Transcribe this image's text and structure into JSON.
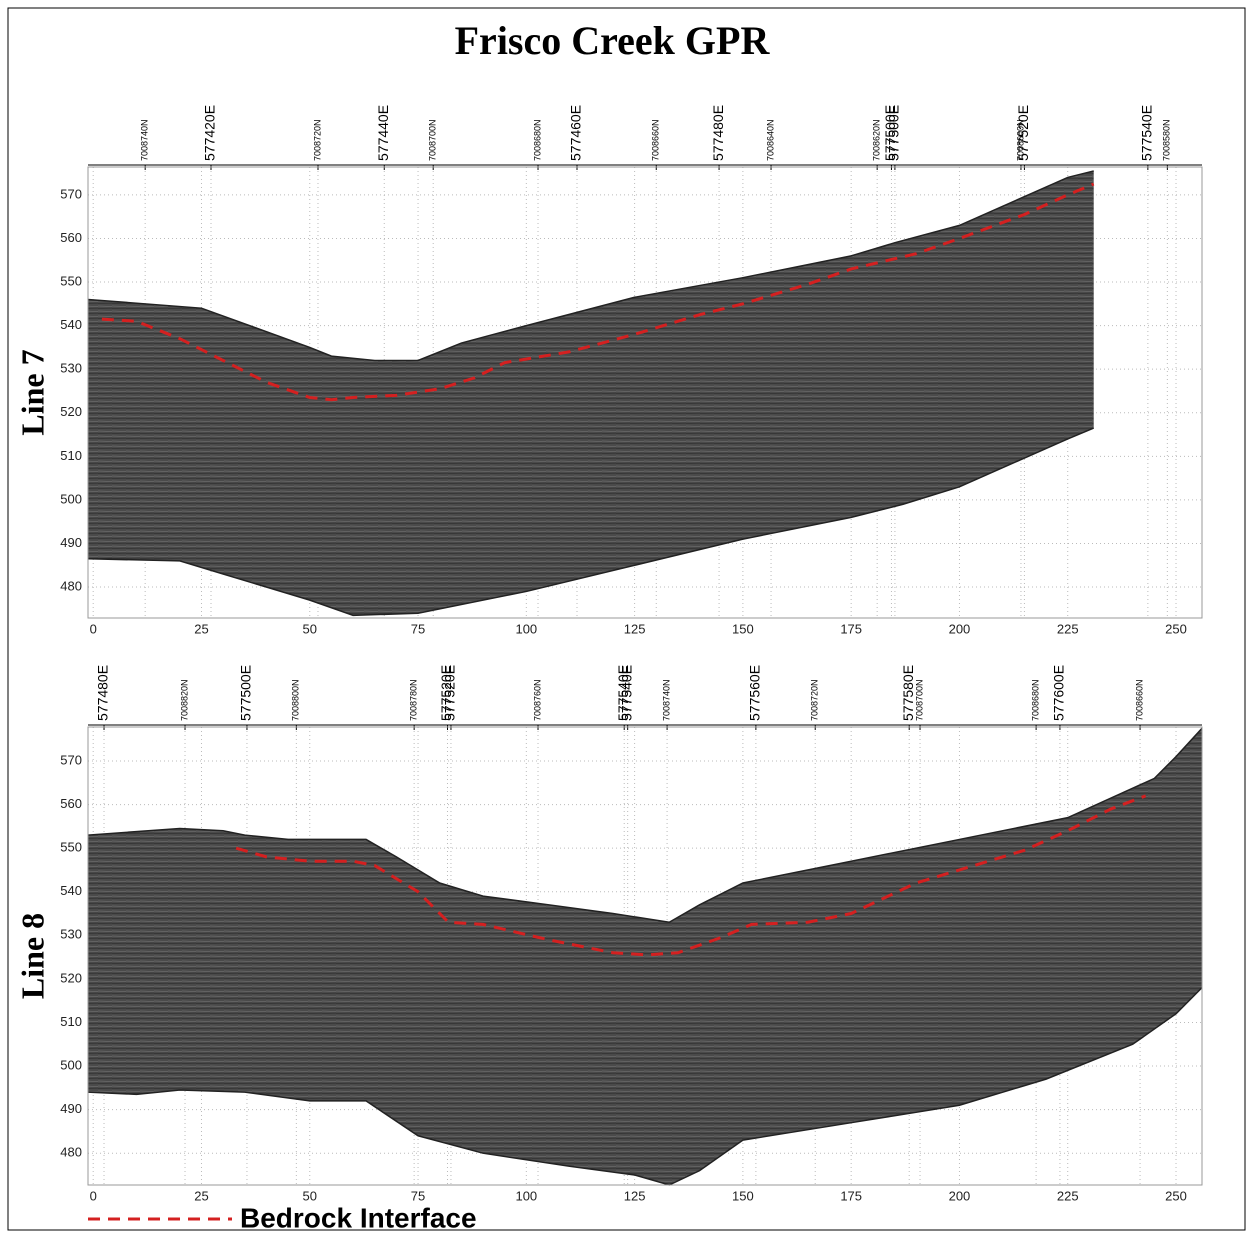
{
  "title": "Frisco Creek GPR",
  "legend": {
    "label": "Bedrock Interface",
    "color": "#d42020"
  },
  "chart_data": [
    {
      "type": "line",
      "ylabel": "Line 7",
      "xlim": [
        -1.2,
        256
      ],
      "ylim": [
        472.9,
        576.4
      ],
      "xticks": [
        0,
        25,
        50,
        75,
        100,
        125,
        150,
        175,
        200,
        225,
        250
      ],
      "yticks": [
        480,
        490,
        500,
        510,
        520,
        530,
        540,
        550,
        560,
        570
      ],
      "grid": true,
      "top_ticks": [
        {
          "value": 12.0,
          "label": "7008740N"
        },
        {
          "value": 27.2,
          "label": "577420E"
        },
        {
          "value": 51.9,
          "label": "7008720N"
        },
        {
          "value": 67.2,
          "label": "577440E"
        },
        {
          "value": 78.5,
          "label": "7008700N"
        },
        {
          "value": 102.7,
          "label": "7008680N"
        },
        {
          "value": 111.7,
          "label": "577460E"
        },
        {
          "value": 130,
          "label": "7008660N"
        },
        {
          "value": 144.5,
          "label": "577480E"
        },
        {
          "value": 156.5,
          "label": "7008640N"
        },
        {
          "value": 181,
          "label": "7008620N"
        },
        {
          "value": 184.3,
          "label": "577500E"
        },
        {
          "value": 185.1,
          "label": "577500E"
        },
        {
          "value": 214.2,
          "label": "7008600N"
        },
        {
          "value": 215,
          "label": "577520E"
        },
        {
          "value": 243.5,
          "label": "577540E"
        },
        {
          "value": 248,
          "label": "7008580N"
        }
      ],
      "surface": {
        "x": [
          -1.2,
          25,
          50,
          55,
          65,
          75,
          85,
          100,
          125,
          150,
          175,
          185,
          200,
          225,
          231
        ],
        "values": [
          546,
          544,
          535,
          533,
          532,
          532,
          536,
          540,
          546.5,
          551,
          556,
          559,
          563,
          574,
          575.5
        ]
      },
      "base": {
        "x": [
          -1.2,
          20,
          30,
          50,
          60,
          75,
          100,
          125,
          150,
          175,
          187,
          200,
          225,
          231
        ],
        "values": [
          486.5,
          486,
          483,
          477,
          473.5,
          474,
          479,
          485,
          491,
          496,
          499,
          503,
          514,
          516.5
        ]
      },
      "bedrock": {
        "x": [
          2,
          10,
          20,
          30,
          40,
          50,
          55,
          60,
          70,
          80,
          88,
          95,
          110,
          125,
          140,
          150,
          165,
          175,
          190,
          200,
          215,
          225,
          231
        ],
        "values": [
          541.5,
          541,
          537,
          532,
          527,
          523.5,
          523,
          523.5,
          524,
          525.5,
          528,
          531.5,
          534,
          538,
          542.5,
          545,
          549.5,
          553,
          556.5,
          560,
          565.5,
          570,
          572.5
        ]
      }
    },
    {
      "type": "line",
      "ylabel": "Line 8",
      "xlim": [
        -1.2,
        256
      ],
      "ylim": [
        472.7,
        577.8
      ],
      "xticks": [
        0,
        25,
        50,
        75,
        100,
        125,
        150,
        175,
        200,
        225,
        250
      ],
      "yticks": [
        480,
        490,
        500,
        510,
        520,
        530,
        540,
        550,
        560,
        570
      ],
      "grid": true,
      "top_ticks": [
        {
          "value": 2.5,
          "label": "577480E"
        },
        {
          "value": 21.2,
          "label": "7008820N"
        },
        {
          "value": 35.5,
          "label": "577500E"
        },
        {
          "value": 46.9,
          "label": "7008800N"
        },
        {
          "value": 74.1,
          "label": "7008780N"
        },
        {
          "value": 81.8,
          "label": "577520E"
        },
        {
          "value": 82.6,
          "label": "577520E"
        },
        {
          "value": 102.7,
          "label": "7008760N"
        },
        {
          "value": 122.6,
          "label": "577540E"
        },
        {
          "value": 123.4,
          "label": "577540E"
        },
        {
          "value": 132.5,
          "label": "7008740N"
        },
        {
          "value": 153,
          "label": "577560E"
        },
        {
          "value": 166.7,
          "label": "7008720N"
        },
        {
          "value": 188.4,
          "label": "577580E"
        },
        {
          "value": 190.9,
          "label": "7008700N"
        },
        {
          "value": 217.7,
          "label": "7008680N"
        },
        {
          "value": 223.2,
          "label": "577600E"
        },
        {
          "value": 241.7,
          "label": "7008660N"
        }
      ],
      "surface": {
        "x": [
          -1.2,
          20,
          30,
          35,
          45,
          63,
          70,
          80,
          90,
          105,
          120,
          133,
          140,
          150,
          175,
          200,
          225,
          245,
          250,
          256
        ],
        "values": [
          553,
          554.5,
          554,
          553,
          552,
          552,
          548,
          542,
          539,
          537,
          535,
          533,
          537,
          542,
          547,
          552,
          557,
          566,
          571,
          577.5
        ]
      },
      "base": {
        "x": [
          -1.2,
          10,
          20,
          35,
          50,
          63,
          75,
          90,
          110,
          125,
          133,
          140,
          150,
          175,
          200,
          220,
          240,
          250,
          256
        ],
        "values": [
          494,
          493.5,
          494.5,
          494,
          492,
          492,
          484,
          480,
          477,
          475,
          472.7,
          476,
          483,
          487,
          491,
          497,
          505,
          512,
          518
        ]
      },
      "bedrock": {
        "x": [
          33,
          40,
          50,
          60,
          65,
          75,
          82,
          90,
          105,
          120,
          128,
          135,
          145,
          152,
          165,
          175,
          190,
          200,
          215,
          225,
          235,
          243
        ],
        "values": [
          550,
          548,
          547,
          547,
          546,
          540,
          533,
          532.5,
          529,
          526,
          525.5,
          526,
          529.5,
          532.5,
          533,
          535,
          542,
          545,
          549.5,
          554,
          559,
          562
        ]
      }
    }
  ]
}
